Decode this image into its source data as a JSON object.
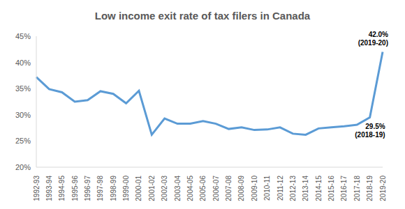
{
  "chart_data": {
    "type": "line",
    "title": "Low income exit rate of tax filers in Canada",
    "categories": [
      "1992-93",
      "1993-94",
      "1994-95",
      "1995-96",
      "1996-97",
      "1997-98",
      "1998-99",
      "1999-00",
      "2000-01",
      "2001-02",
      "2002-03",
      "2003-04",
      "2004-05",
      "2005-06",
      "2006-07",
      "2007-08",
      "2008-09",
      "2009-10",
      "2010-11",
      "2011-12",
      "2012-13",
      "2013-14",
      "2014-15",
      "2015-16",
      "2016-17",
      "2017-18",
      "2018-19",
      "2019-20"
    ],
    "values": [
      37.2,
      34.9,
      34.3,
      32.5,
      32.8,
      34.5,
      34.0,
      32.2,
      34.6,
      26.2,
      29.3,
      28.3,
      28.3,
      28.8,
      28.3,
      27.3,
      27.6,
      27.1,
      27.2,
      27.6,
      26.4,
      26.2,
      27.4,
      27.6,
      27.8,
      28.1,
      29.5,
      42.0
    ],
    "color": "#5b9bd5",
    "ylim": [
      20,
      45
    ],
    "yticks": [
      {
        "value": 20,
        "label": "20%"
      },
      {
        "value": 25,
        "label": "25%"
      },
      {
        "value": 30,
        "label": "30%"
      },
      {
        "value": 35,
        "label": "35%"
      },
      {
        "value": 40,
        "label": "40%"
      },
      {
        "value": 45,
        "label": "45%"
      }
    ],
    "grid": false,
    "annotations": [
      {
        "category": "2019-20",
        "value": 42.0,
        "lines": [
          "42.0%",
          "(2019-20)"
        ],
        "position": "above"
      },
      {
        "category": "2018-19",
        "value": 29.5,
        "lines": [
          "29.5%",
          "(2018-19)"
        ],
        "position": "below"
      }
    ]
  }
}
